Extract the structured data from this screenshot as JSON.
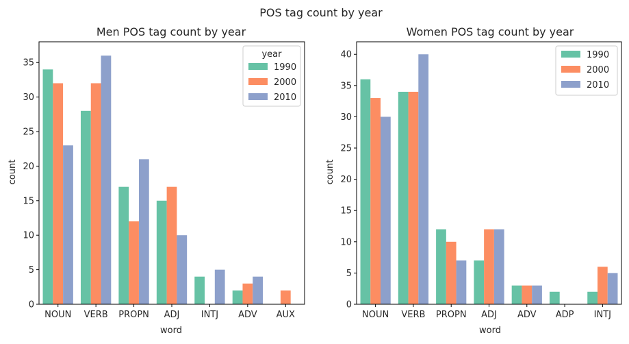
{
  "figure": {
    "suptitle": "POS tag count by year"
  },
  "colors": {
    "1990": "#66c2a5",
    "2000": "#fc8d62",
    "2010": "#8da0cb"
  },
  "chart_data": [
    {
      "type": "bar",
      "title": "Men POS tag count by year",
      "xlabel": "word",
      "ylabel": "count",
      "ylim": [
        0,
        38
      ],
      "yticks": [
        0,
        5,
        10,
        15,
        20,
        25,
        30,
        35
      ],
      "grid": false,
      "legend": {
        "title": "year",
        "placement": "top-right"
      },
      "categories": [
        "NOUN",
        "VERB",
        "PROPN",
        "ADJ",
        "INTJ",
        "ADV",
        "AUX"
      ],
      "series": [
        {
          "name": "1990",
          "color": "#66c2a5",
          "values": [
            34,
            28,
            17,
            15,
            4,
            2,
            0
          ]
        },
        {
          "name": "2000",
          "color": "#fc8d62",
          "values": [
            32,
            32,
            12,
            17,
            0,
            3,
            2
          ]
        },
        {
          "name": "2010",
          "color": "#8da0cb",
          "values": [
            23,
            36,
            21,
            10,
            5,
            4,
            0
          ]
        }
      ]
    },
    {
      "type": "bar",
      "title": "Women POS tag count by year",
      "xlabel": "word",
      "ylabel": "count",
      "ylim": [
        0,
        42
      ],
      "yticks": [
        0,
        5,
        10,
        15,
        20,
        25,
        30,
        35,
        40
      ],
      "grid": false,
      "legend": {
        "title": "",
        "placement": "top-right"
      },
      "categories": [
        "NOUN",
        "VERB",
        "PROPN",
        "ADJ",
        "ADV",
        "ADP",
        "INTJ"
      ],
      "series": [
        {
          "name": "1990",
          "color": "#66c2a5",
          "values": [
            36,
            34,
            12,
            7,
            3,
            2,
            2
          ]
        },
        {
          "name": "2000",
          "color": "#fc8d62",
          "values": [
            33,
            34,
            10,
            12,
            3,
            0,
            6
          ]
        },
        {
          "name": "2010",
          "color": "#8da0cb",
          "values": [
            30,
            40,
            7,
            12,
            3,
            0,
            5
          ]
        }
      ]
    }
  ]
}
